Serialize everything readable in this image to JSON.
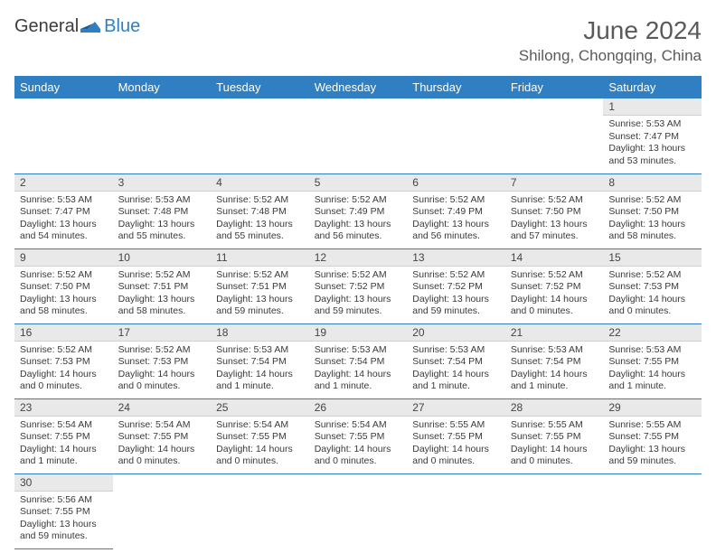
{
  "logo": {
    "word1": "General",
    "word2": "Blue"
  },
  "title": "June 2024",
  "location": "Shilong, Chongqing, China",
  "colors": {
    "header_bg": "#2f7fc2",
    "header_text": "#ffffff",
    "daynum_bg": "#e9e9e9",
    "border": "#2f7fc2",
    "text": "#3a3a3a"
  },
  "weekdays": [
    "Sunday",
    "Monday",
    "Tuesday",
    "Wednesday",
    "Thursday",
    "Friday",
    "Saturday"
  ],
  "weeks": [
    [
      null,
      null,
      null,
      null,
      null,
      null,
      {
        "n": "1",
        "sr": "5:53 AM",
        "ss": "7:47 PM",
        "dl": "13 hours and 53 minutes."
      }
    ],
    [
      {
        "n": "2",
        "sr": "5:53 AM",
        "ss": "7:47 PM",
        "dl": "13 hours and 54 minutes."
      },
      {
        "n": "3",
        "sr": "5:53 AM",
        "ss": "7:48 PM",
        "dl": "13 hours and 55 minutes."
      },
      {
        "n": "4",
        "sr": "5:52 AM",
        "ss": "7:48 PM",
        "dl": "13 hours and 55 minutes."
      },
      {
        "n": "5",
        "sr": "5:52 AM",
        "ss": "7:49 PM",
        "dl": "13 hours and 56 minutes."
      },
      {
        "n": "6",
        "sr": "5:52 AM",
        "ss": "7:49 PM",
        "dl": "13 hours and 56 minutes."
      },
      {
        "n": "7",
        "sr": "5:52 AM",
        "ss": "7:50 PM",
        "dl": "13 hours and 57 minutes."
      },
      {
        "n": "8",
        "sr": "5:52 AM",
        "ss": "7:50 PM",
        "dl": "13 hours and 58 minutes."
      }
    ],
    [
      {
        "n": "9",
        "sr": "5:52 AM",
        "ss": "7:50 PM",
        "dl": "13 hours and 58 minutes."
      },
      {
        "n": "10",
        "sr": "5:52 AM",
        "ss": "7:51 PM",
        "dl": "13 hours and 58 minutes."
      },
      {
        "n": "11",
        "sr": "5:52 AM",
        "ss": "7:51 PM",
        "dl": "13 hours and 59 minutes."
      },
      {
        "n": "12",
        "sr": "5:52 AM",
        "ss": "7:52 PM",
        "dl": "13 hours and 59 minutes."
      },
      {
        "n": "13",
        "sr": "5:52 AM",
        "ss": "7:52 PM",
        "dl": "13 hours and 59 minutes."
      },
      {
        "n": "14",
        "sr": "5:52 AM",
        "ss": "7:52 PM",
        "dl": "14 hours and 0 minutes."
      },
      {
        "n": "15",
        "sr": "5:52 AM",
        "ss": "7:53 PM",
        "dl": "14 hours and 0 minutes."
      }
    ],
    [
      {
        "n": "16",
        "sr": "5:52 AM",
        "ss": "7:53 PM",
        "dl": "14 hours and 0 minutes."
      },
      {
        "n": "17",
        "sr": "5:52 AM",
        "ss": "7:53 PM",
        "dl": "14 hours and 0 minutes."
      },
      {
        "n": "18",
        "sr": "5:53 AM",
        "ss": "7:54 PM",
        "dl": "14 hours and 1 minute."
      },
      {
        "n": "19",
        "sr": "5:53 AM",
        "ss": "7:54 PM",
        "dl": "14 hours and 1 minute."
      },
      {
        "n": "20",
        "sr": "5:53 AM",
        "ss": "7:54 PM",
        "dl": "14 hours and 1 minute."
      },
      {
        "n": "21",
        "sr": "5:53 AM",
        "ss": "7:54 PM",
        "dl": "14 hours and 1 minute."
      },
      {
        "n": "22",
        "sr": "5:53 AM",
        "ss": "7:55 PM",
        "dl": "14 hours and 1 minute."
      }
    ],
    [
      {
        "n": "23",
        "sr": "5:54 AM",
        "ss": "7:55 PM",
        "dl": "14 hours and 1 minute."
      },
      {
        "n": "24",
        "sr": "5:54 AM",
        "ss": "7:55 PM",
        "dl": "14 hours and 0 minutes."
      },
      {
        "n": "25",
        "sr": "5:54 AM",
        "ss": "7:55 PM",
        "dl": "14 hours and 0 minutes."
      },
      {
        "n": "26",
        "sr": "5:54 AM",
        "ss": "7:55 PM",
        "dl": "14 hours and 0 minutes."
      },
      {
        "n": "27",
        "sr": "5:55 AM",
        "ss": "7:55 PM",
        "dl": "14 hours and 0 minutes."
      },
      {
        "n": "28",
        "sr": "5:55 AM",
        "ss": "7:55 PM",
        "dl": "14 hours and 0 minutes."
      },
      {
        "n": "29",
        "sr": "5:55 AM",
        "ss": "7:55 PM",
        "dl": "13 hours and 59 minutes."
      }
    ],
    [
      {
        "n": "30",
        "sr": "5:56 AM",
        "ss": "7:55 PM",
        "dl": "13 hours and 59 minutes."
      },
      null,
      null,
      null,
      null,
      null,
      null
    ]
  ],
  "labels": {
    "sunrise": "Sunrise:",
    "sunset": "Sunset:",
    "daylight": "Daylight:"
  }
}
